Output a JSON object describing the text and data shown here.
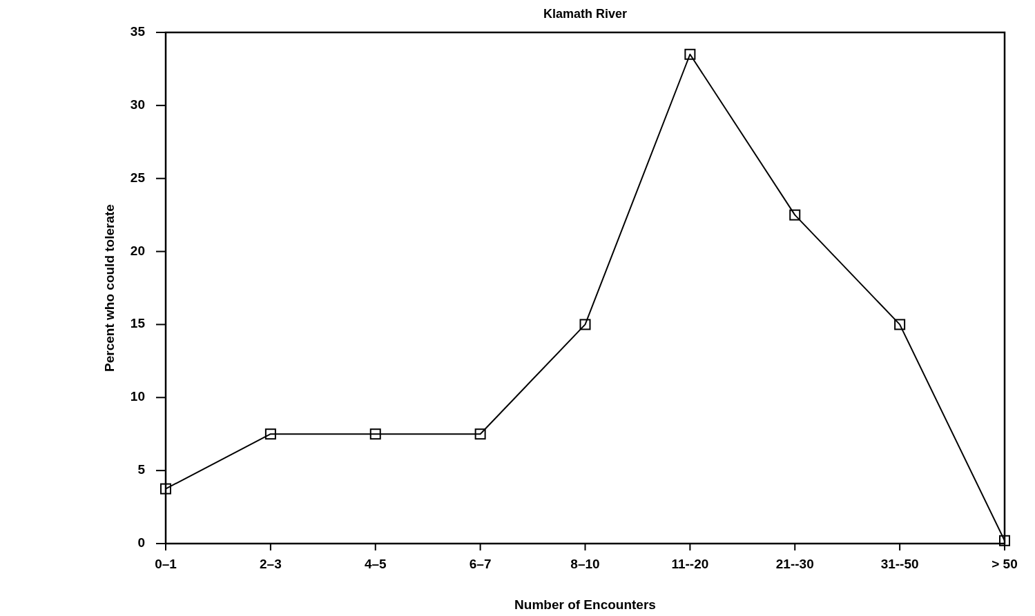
{
  "chart_data": {
    "type": "line",
    "title": "Klamath River",
    "xlabel": "Number of Encounters",
    "ylabel": "Percent who could tolerate",
    "categories": [
      "0–1",
      "2–3",
      "4–5",
      "6–7",
      "8–10",
      "11--20",
      "21--30",
      "31--50",
      "> 50"
    ],
    "values": [
      3.75,
      7.5,
      7.5,
      7.5,
      15,
      33.5,
      22.5,
      15,
      0.2
    ],
    "color": "#000000",
    "marker": "square",
    "line_style": "solid",
    "ylim": [
      0,
      35
    ],
    "yticks": [
      0,
      5,
      10,
      15,
      20,
      25,
      30,
      35
    ],
    "grid": false
  }
}
